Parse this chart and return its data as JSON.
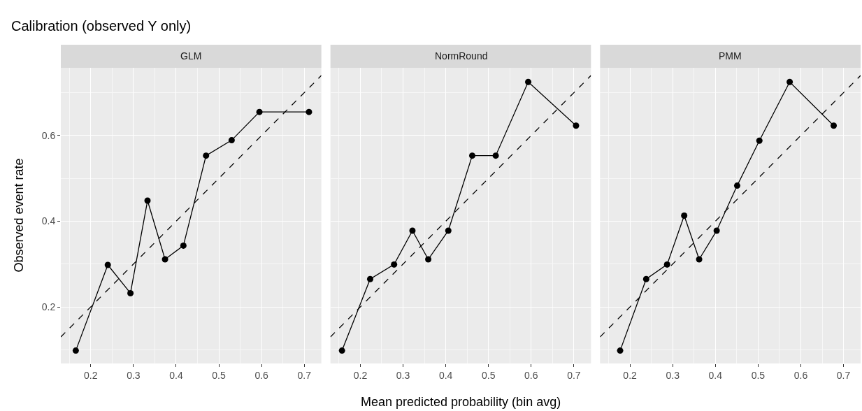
{
  "chart_data": [
    {
      "type": "line",
      "title": "Calibration (observed Y only)",
      "subtitle": "GLM",
      "ylabel": "Observed event rate",
      "xlim": [
        0.13,
        0.74
      ],
      "ylim": [
        0.068,
        0.758
      ],
      "xticks": [
        0.2,
        0.3,
        0.4,
        0.5,
        0.6,
        0.7
      ],
      "yticks": [
        0.2,
        0.4,
        0.6
      ],
      "grid": true,
      "series": [
        {
          "color": "#000000",
          "marker": "circle",
          "line_style": "solid",
          "x": [
            0.165,
            0.24,
            0.293,
            0.333,
            0.374,
            0.417,
            0.47,
            0.53,
            0.595,
            0.711
          ],
          "values": [
            0.098,
            0.298,
            0.232,
            0.448,
            0.311,
            0.343,
            0.553,
            0.589,
            0.655,
            0.655
          ]
        },
        {
          "color": "#000000",
          "marker": "none",
          "line_style": "dashed",
          "x": [
            0.13,
            0.74
          ],
          "values": [
            0.13,
            0.74
          ]
        }
      ]
    },
    {
      "type": "line",
      "subtitle": "NormRound",
      "xlabel": "Mean predicted probability (bin avg)",
      "xlim": [
        0.13,
        0.74
      ],
      "ylim": [
        0.068,
        0.758
      ],
      "xticks": [
        0.2,
        0.3,
        0.4,
        0.5,
        0.6,
        0.7
      ],
      "yticks": [
        0.2,
        0.4,
        0.6
      ],
      "grid": true,
      "tick_labels": "x",
      "series": [
        {
          "color": "#000000",
          "marker": "circle",
          "line_style": "solid",
          "x": [
            0.157,
            0.223,
            0.279,
            0.322,
            0.359,
            0.406,
            0.462,
            0.517,
            0.593,
            0.705
          ],
          "values": [
            0.098,
            0.265,
            0.299,
            0.378,
            0.311,
            0.378,
            0.553,
            0.553,
            0.725,
            0.623
          ]
        },
        {
          "color": "#000000",
          "marker": "none",
          "line_style": "dashed",
          "x": [
            0.13,
            0.74
          ],
          "values": [
            0.13,
            0.74
          ]
        }
      ]
    },
    {
      "type": "line",
      "subtitle": "PMM",
      "xlim": [
        0.13,
        0.74
      ],
      "ylim": [
        0.068,
        0.758
      ],
      "xticks": [
        0.2,
        0.3,
        0.4,
        0.5,
        0.6,
        0.7
      ],
      "yticks": [
        0.2,
        0.4,
        0.6
      ],
      "grid": true,
      "tick_labels": "x",
      "series": [
        {
          "color": "#000000",
          "marker": "circle",
          "line_style": "solid",
          "x": [
            0.177,
            0.238,
            0.287,
            0.327,
            0.362,
            0.403,
            0.451,
            0.503,
            0.574,
            0.677
          ],
          "values": [
            0.098,
            0.265,
            0.299,
            0.413,
            0.311,
            0.378,
            0.483,
            0.588,
            0.725,
            0.623
          ]
        },
        {
          "color": "#000000",
          "marker": "none",
          "line_style": "dashed",
          "x": [
            0.13,
            0.74
          ],
          "values": [
            0.13,
            0.74
          ]
        }
      ]
    }
  ]
}
